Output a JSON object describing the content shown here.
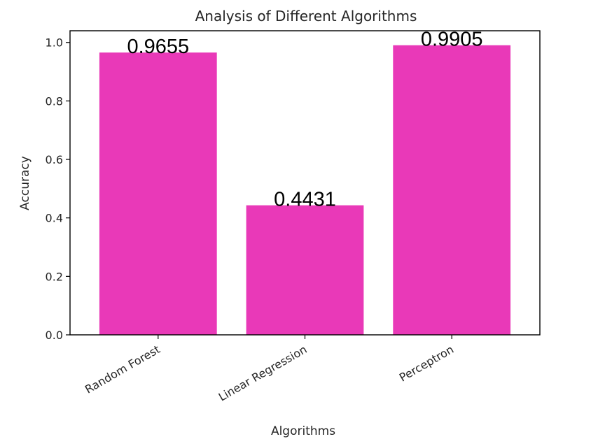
{
  "chart_data": {
    "type": "bar",
    "title": "Analysis of Different Algorithms",
    "xlabel": "Algorithms",
    "ylabel": "Accuracy",
    "categories": [
      "Random Forest",
      "Linear Regression",
      "Perceptron"
    ],
    "values": [
      0.9655,
      0.4431,
      0.9905
    ],
    "value_labels": [
      "0.9655",
      "0.4431",
      "0.9905"
    ],
    "ylim": [
      0,
      1.04
    ],
    "yticks": [
      0.0,
      0.2,
      0.4,
      0.6,
      0.8,
      1.0
    ],
    "ytick_labels": [
      "0.0",
      "0.2",
      "0.4",
      "0.6",
      "0.8",
      "1.0"
    ],
    "bar_color": "#e939b8",
    "grid": false,
    "xtick_rotation_deg": -30
  }
}
